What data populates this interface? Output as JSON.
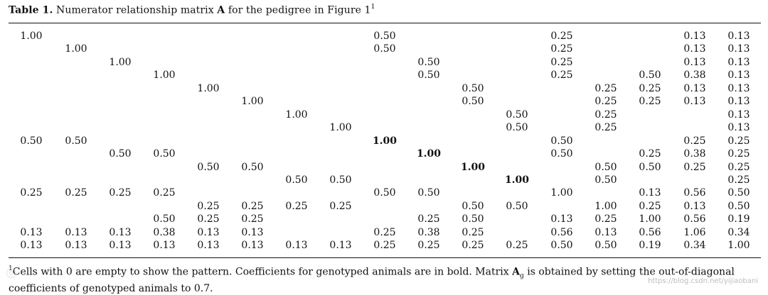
{
  "caption": {
    "label": "Table 1.",
    "text_before": " Numerator relationship matrix ",
    "matrix_symbol": "A",
    "text_after": " for the pedigree in Figure 1",
    "footnote_ref": "1"
  },
  "table": {
    "rows": [
      [
        "1.00",
        "",
        "",
        "",
        "",
        "",
        "",
        "",
        "0.50",
        "",
        "",
        "",
        "0.25",
        "",
        "",
        "0.13",
        "0.13"
      ],
      [
        "",
        "1.00",
        "",
        "",
        "",
        "",
        "",
        "",
        "0.50",
        "",
        "",
        "",
        "0.25",
        "",
        "",
        "0.13",
        "0.13"
      ],
      [
        "",
        "",
        "1.00",
        "",
        "",
        "",
        "",
        "",
        "",
        "0.50",
        "",
        "",
        "0.25",
        "",
        "",
        "0.13",
        "0.13"
      ],
      [
        "",
        "",
        "",
        "1.00",
        "",
        "",
        "",
        "",
        "",
        "0.50",
        "",
        "",
        "0.25",
        "",
        "0.50",
        "0.38",
        "0.13"
      ],
      [
        "",
        "",
        "",
        "",
        "1.00",
        "",
        "",
        "",
        "",
        "",
        "0.50",
        "",
        "",
        "0.25",
        "0.25",
        "0.13",
        "0.13"
      ],
      [
        "",
        "",
        "",
        "",
        "",
        "1.00",
        "",
        "",
        "",
        "",
        "0.50",
        "",
        "",
        "0.25",
        "0.25",
        "0.13",
        "0.13"
      ],
      [
        "",
        "",
        "",
        "",
        "",
        "",
        "1.00",
        "",
        "",
        "",
        "",
        "0.50",
        "",
        "0.25",
        "",
        "",
        "0.13"
      ],
      [
        "",
        "",
        "",
        "",
        "",
        "",
        "",
        "1.00",
        "",
        "",
        "",
        "0.50",
        "",
        "0.25",
        "",
        "",
        "0.13"
      ],
      [
        "0.50",
        "0.50",
        "",
        "",
        "",
        "",
        "",
        "",
        "1.00",
        "",
        "",
        "",
        "0.50",
        "",
        "",
        "0.25",
        "0.25"
      ],
      [
        "",
        "",
        "0.50",
        "0.50",
        "",
        "",
        "",
        "",
        "",
        "1.00",
        "",
        "",
        "0.50",
        "",
        "0.25",
        "0.38",
        "0.25"
      ],
      [
        "",
        "",
        "",
        "",
        "0.50",
        "0.50",
        "",
        "",
        "",
        "",
        "1.00",
        "",
        "",
        "0.50",
        "0.50",
        "0.25",
        "0.25"
      ],
      [
        "",
        "",
        "",
        "",
        "",
        "",
        "0.50",
        "0.50",
        "",
        "",
        "",
        "1.00",
        "",
        "0.50",
        "",
        "",
        "0.25"
      ],
      [
        "0.25",
        "0.25",
        "0.25",
        "0.25",
        "",
        "",
        "",
        "",
        "0.50",
        "0.50",
        "",
        "",
        "1.00",
        "",
        "0.13",
        "0.56",
        "0.50"
      ],
      [
        "",
        "",
        "",
        "",
        "0.25",
        "0.25",
        "0.25",
        "0.25",
        "",
        "",
        "0.50",
        "0.50",
        "",
        "1.00",
        "0.25",
        "0.13",
        "0.50"
      ],
      [
        "",
        "",
        "",
        "0.50",
        "0.25",
        "0.25",
        "",
        "",
        "",
        "0.25",
        "0.50",
        "",
        "0.13",
        "0.25",
        "1.00",
        "0.56",
        "0.19"
      ],
      [
        "0.13",
        "0.13",
        "0.13",
        "0.38",
        "0.13",
        "0.13",
        "",
        "",
        "0.25",
        "0.38",
        "0.25",
        "",
        "0.56",
        "0.13",
        "0.56",
        "1.06",
        "0.34"
      ],
      [
        "0.13",
        "0.13",
        "0.13",
        "0.13",
        "0.13",
        "0.13",
        "0.13",
        "0.13",
        "0.25",
        "0.25",
        "0.25",
        "0.25",
        "0.50",
        "0.50",
        "0.19",
        "0.34",
        "1.00"
      ]
    ],
    "bold_cells": [
      [
        8,
        8
      ],
      [
        9,
        9
      ],
      [
        10,
        10
      ],
      [
        11,
        11
      ]
    ]
  },
  "footnote": {
    "ref": "1",
    "text1": "Cells with 0 are empty to show the pattern. Coefficients for genotyped animals are in bold. Matrix ",
    "matrix_symbol": "A",
    "subscript": "g",
    "text2": " is obtained by setting the out-of-diagonal",
    "line2": "coefficients of genotyped animals to 0.7."
  },
  "watermark": {
    "text": "https://blog.csdn.net/yijiaobani"
  }
}
